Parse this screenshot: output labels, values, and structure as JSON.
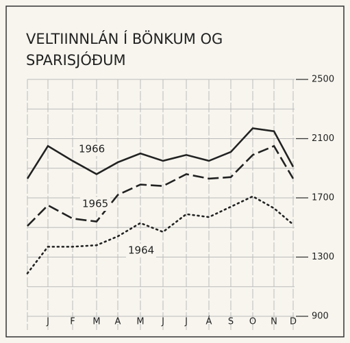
{
  "chart_data": {
    "type": "line",
    "title": [
      "VELTIINNLÁN Í BÖNKUM OG",
      "SPARISJÓÐUM"
    ],
    "categories": [
      null,
      "J",
      "F",
      "M",
      "A",
      "M",
      "J",
      "J",
      "Á",
      "S",
      "O",
      "N",
      "D"
    ],
    "series": [
      {
        "name": "1966",
        "color": "#222222",
        "dash": "solid",
        "values": [
          1830,
          2050,
          1950,
          1860,
          1940,
          2000,
          1950,
          1990,
          1950,
          2010,
          2170,
          2150,
          1910
        ]
      },
      {
        "name": "1965",
        "color": "#222222",
        "dash": "dashed",
        "values": [
          1510,
          1650,
          1560,
          1540,
          1720,
          1790,
          1780,
          1860,
          1830,
          1840,
          1990,
          2050,
          1830
        ]
      },
      {
        "name": "1964",
        "color": "#222222",
        "dash": "dotted",
        "values": [
          1190,
          1370,
          1370,
          1380,
          1440,
          1530,
          1470,
          1590,
          1570,
          1640,
          1710,
          1630,
          1520
        ]
      }
    ],
    "ylim": [
      900,
      2500
    ],
    "yticks": [
      900,
      1300,
      1700,
      2100,
      2500
    ],
    "minor_yticks": [
      1100,
      1500,
      1900,
      2300
    ],
    "grid": true
  }
}
